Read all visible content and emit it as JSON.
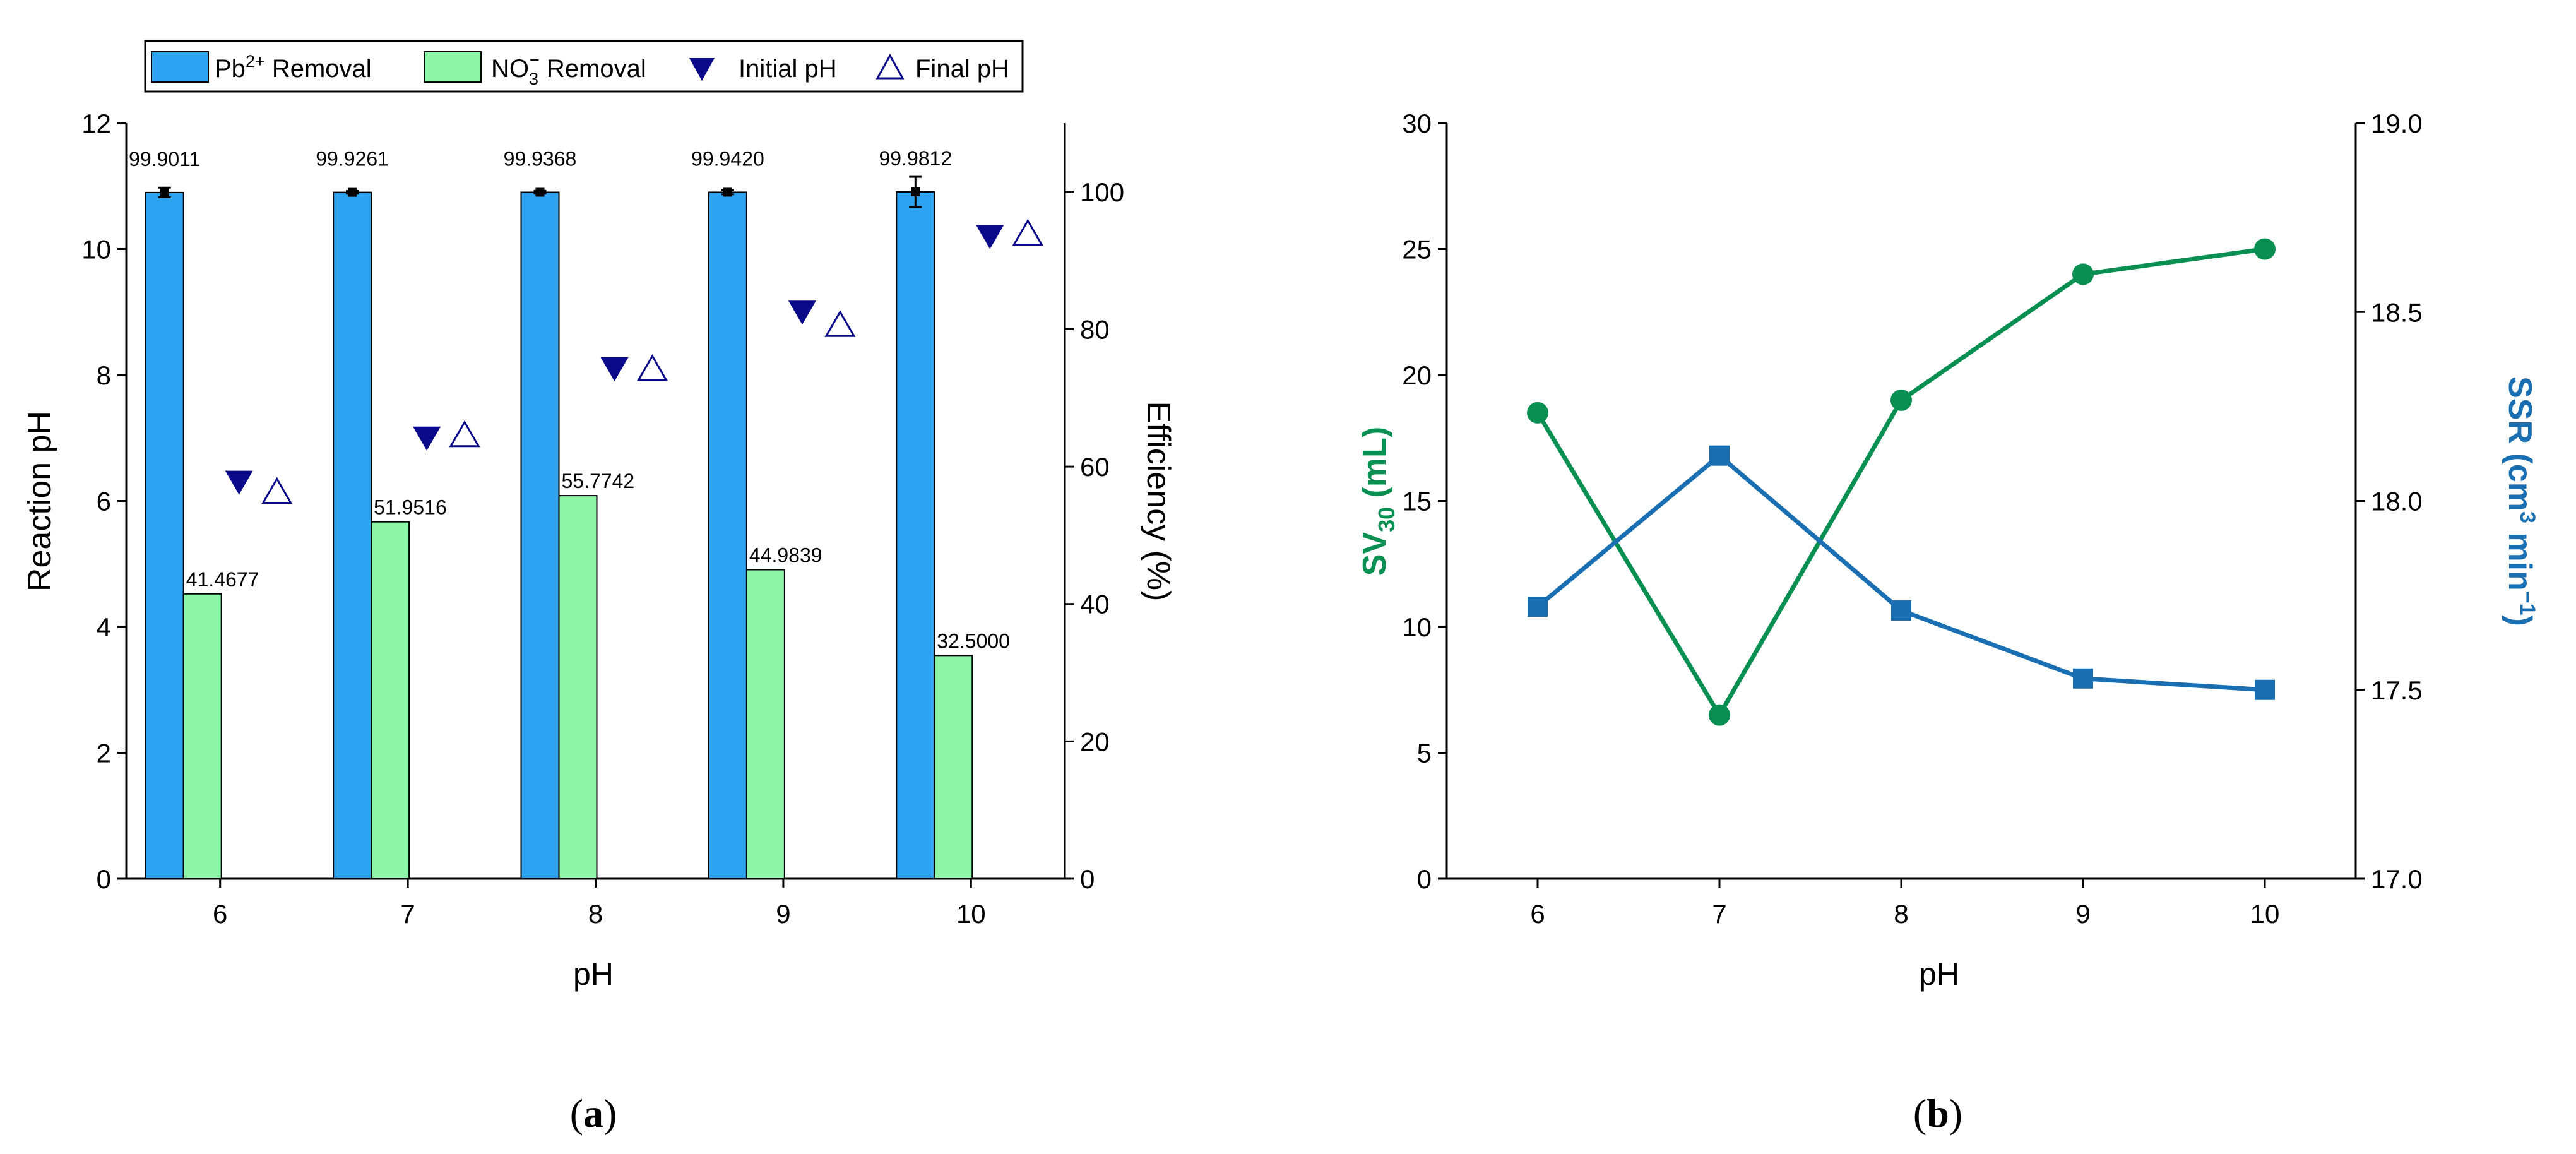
{
  "colors": {
    "pb_bar": "#2ea3f2",
    "no3_bar": "#8cf5a8",
    "ph_marker": "#0a0a8a",
    "sv_line": "#0a8f53",
    "ssr_line": "#1a6fb3",
    "axis": "#000000"
  },
  "panels": {
    "a_label": "a",
    "b_label": "b"
  },
  "chart_data": [
    {
      "id": "panel-a",
      "type": "bar",
      "categories": [
        "6",
        "7",
        "8",
        "9",
        "10"
      ],
      "xlabel": "pH",
      "ylabel_left": "Reaction pH",
      "ylabel_right": "Efficiency (%)",
      "ylim_left": [
        0,
        12
      ],
      "yticks_left": [
        0,
        2,
        4,
        6,
        8,
        10,
        12
      ],
      "ylim_right": [
        0,
        110
      ],
      "yticks_right": [
        0,
        20,
        40,
        60,
        80,
        100
      ],
      "legend": {
        "position": "top",
        "pb_prefix": "Pb",
        "pb_sup": "2+",
        "pb_suffix": " Removal",
        "no3_prefix": "NO",
        "no3_sub": "3",
        "no3_sup": "−",
        "no3_suffix": " Removal",
        "initial_ph": "Initial pH",
        "final_ph": "Final pH"
      },
      "series": [
        {
          "name": "Pb2+ Removal",
          "axis": "right",
          "values": [
            99.9011,
            99.9261,
            99.9368,
            99.942,
            99.9812
          ],
          "labels": [
            "99.9011",
            "99.9261",
            "99.9368",
            "99.9420",
            "99.9812"
          ],
          "errors": [
            0.7,
            0.2,
            0.2,
            0.3,
            2.2
          ]
        },
        {
          "name": "NO3- Removal",
          "axis": "right",
          "values": [
            41.4677,
            51.9516,
            55.7742,
            44.9839,
            32.5
          ],
          "labels": [
            "41.4677",
            "51.9516",
            "55.7742",
            "44.9839",
            "32.5000"
          ]
        },
        {
          "name": "Initial pH",
          "axis": "left",
          "marker": "filled-down-triangle",
          "values": [
            6.3,
            7.0,
            8.1,
            9.0,
            10.2
          ]
        },
        {
          "name": "Final pH",
          "axis": "left",
          "marker": "open-up-triangle",
          "values": [
            6.15,
            7.05,
            8.1,
            8.8,
            10.25
          ]
        }
      ]
    },
    {
      "id": "panel-b",
      "type": "line",
      "x": [
        6,
        7,
        8,
        9,
        10
      ],
      "xticks": [
        "6",
        "7",
        "8",
        "9",
        "10"
      ],
      "xlim": [
        5.5,
        10.5
      ],
      "xlabel": "pH",
      "ylabel_left_main": "SV",
      "ylabel_left_sub": "30",
      "ylabel_left_tail": " (mL)",
      "ylabel_right_main": "SSR (cm",
      "ylabel_right_sup1": "3",
      "ylabel_right_mid": " min",
      "ylabel_right_sup2": "−1",
      "ylabel_right_tail": ")",
      "ylim_left": [
        0,
        30
      ],
      "yticks_left": [
        0,
        5,
        10,
        15,
        20,
        25,
        30
      ],
      "ylim_right": [
        17.0,
        19.0
      ],
      "yticks_right": [
        "17.0",
        "17.5",
        "18.0",
        "18.5",
        "19.0"
      ],
      "series": [
        {
          "name": "SV30",
          "axis": "left",
          "marker": "circle",
          "values": [
            18.5,
            6.5,
            19.0,
            24.0,
            25.0
          ]
        },
        {
          "name": "SSR",
          "axis": "right",
          "marker": "square",
          "values": [
            17.72,
            18.12,
            17.71,
            17.53,
            17.5
          ]
        }
      ]
    }
  ]
}
